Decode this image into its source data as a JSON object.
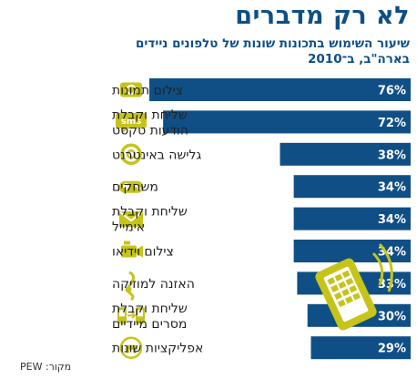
{
  "colors": {
    "bar": "#0f4f86",
    "icon": "#c6c41a",
    "title": "#0f4f86",
    "label": "#222222",
    "value_text": "#ffffff"
  },
  "header": {
    "title": "לא רק מדברים",
    "subtitle_line1": "שיעור השימוש בתכונות שונות של טלפונים ניידים",
    "subtitle_line2": "בארה\"ב, ב־2010"
  },
  "footer": {
    "source": "מקור: PEW"
  },
  "chart_data": {
    "type": "bar",
    "orientation": "horizontal",
    "title": "לא רק מדברים",
    "subtitle": "שיעור השימוש בתכונות שונות של טלפונים ניידים בארה\"ב, ב־2010",
    "xlim": [
      0,
      80
    ],
    "grid": false,
    "legend": "none",
    "categories": [
      {
        "lines": [
          "צילום תמונות"
        ],
        "icon": "camera-icon"
      },
      {
        "lines": [
          "שליחת וקבלת",
          "הודעות טקסט"
        ],
        "icon": "sms-icon"
      },
      {
        "lines": [
          "גלישה באינטרנט"
        ],
        "icon": "at-sign-icon"
      },
      {
        "lines": [
          "משחקים"
        ],
        "icon": "gamepad-icon"
      },
      {
        "lines": [
          "שליחת וקבלת",
          "אימייל"
        ],
        "icon": "envelope-icon"
      },
      {
        "lines": [
          "צילום וידיאו"
        ],
        "icon": "video-camera-icon"
      },
      {
        "lines": [
          "האזנה למוזיקה"
        ],
        "icon": "music-note-icon"
      },
      {
        "lines": [
          "שליחת וקבלת",
          "מסרים מיידיים"
        ],
        "icon": "instant-message-icon"
      },
      {
        "lines": [
          "אפליקציות שונות"
        ],
        "icon": "apps-icon"
      }
    ],
    "values": [
      76,
      72,
      38,
      34,
      34,
      34,
      33,
      30,
      29
    ],
    "value_labels": [
      "76%",
      "72%",
      "38%",
      "34%",
      "34%",
      "34%",
      "33%",
      "30%",
      "29%"
    ]
  }
}
